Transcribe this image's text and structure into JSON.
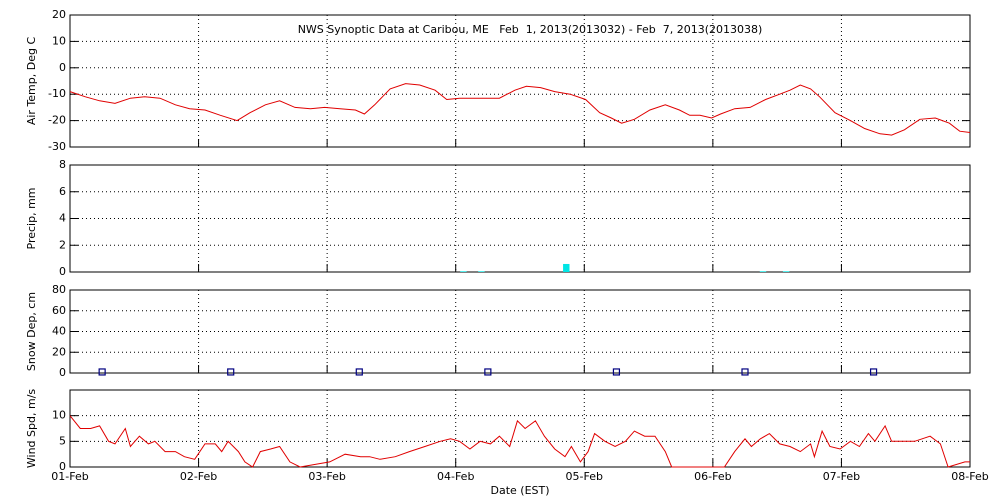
{
  "chart_data": [
    {
      "type": "line",
      "title": "NWS Synoptic Data at Caribou, ME   Feb  1, 2013(2013032) - Feb  7, 2013(2013038)",
      "ylabel": "Air Temp, Deg C",
      "color": "#e00000",
      "grid": true,
      "xlim": [
        0,
        7
      ],
      "xticks": [
        0,
        1,
        2,
        3,
        4,
        5,
        6,
        7
      ],
      "ylim": [
        -30,
        20
      ],
      "yticks": [
        -30,
        -20,
        -10,
        0,
        10,
        20
      ],
      "x": [
        0,
        0.12,
        0.23,
        0.35,
        0.47,
        0.58,
        0.7,
        0.82,
        0.93,
        1.05,
        1.17,
        1.3,
        1.4,
        1.52,
        1.63,
        1.75,
        1.87,
        1.98,
        2.1,
        2.22,
        2.29,
        2.37,
        2.49,
        2.61,
        2.72,
        2.84,
        2.93,
        3.03,
        3.15,
        3.34,
        3.46,
        3.55,
        3.66,
        3.77,
        3.89,
        4.01,
        4.12,
        4.21,
        4.29,
        4.39,
        4.51,
        4.63,
        4.74,
        4.82,
        4.9,
        4.99,
        5.06,
        5.17,
        5.29,
        5.41,
        5.52,
        5.6,
        5.68,
        5.76,
        5.83,
        5.95,
        6.07,
        6.18,
        6.3,
        6.39,
        6.49,
        6.61,
        6.73,
        6.84,
        6.92,
        7
      ],
      "values": [
        -9,
        -11,
        -12.5,
        -13.5,
        -11.5,
        -11,
        -11.5,
        -14,
        -15.5,
        -16,
        -18,
        -20,
        -17,
        -14,
        -12.5,
        -15,
        -15.5,
        -15,
        -15.5,
        -16,
        -17.5,
        -14,
        -8,
        -6,
        -6.5,
        -8.5,
        -12,
        -11.5,
        -11.5,
        -11.5,
        -8.5,
        -7,
        -7.5,
        -9,
        -10,
        -12,
        -17,
        -19,
        -21,
        -19.5,
        -16,
        -14,
        -16,
        -18,
        -18,
        -19,
        -17.5,
        -15.5,
        -15,
        -12,
        -10,
        -8.5,
        -6.5,
        -8,
        -11,
        -17,
        -20,
        -23,
        -25,
        -25.5,
        -23.5,
        -19.5,
        -19,
        -21,
        -24,
        -24.5
      ]
    },
    {
      "type": "bar",
      "ylabel": "Precip, mm",
      "color": "#00e5e5",
      "grid": true,
      "xlim": [
        0,
        7
      ],
      "xticks": [
        0,
        1,
        2,
        3,
        4,
        5,
        6,
        7
      ],
      "ylim": [
        0,
        8
      ],
      "yticks": [
        0,
        2,
        4,
        6,
        8
      ],
      "x": [
        3.06,
        3.2,
        3.86,
        5.39,
        5.57
      ],
      "values": [
        0.05,
        0.05,
        0.6,
        0.05,
        0.05
      ]
    },
    {
      "type": "scatter",
      "ylabel": "Snow Dep, cm",
      "color": "#000080",
      "grid": true,
      "xlim": [
        0,
        7
      ],
      "xticks": [
        0,
        1,
        2,
        3,
        4,
        5,
        6,
        7
      ],
      "ylim": [
        0,
        80
      ],
      "yticks": [
        0,
        20,
        40,
        60,
        80
      ],
      "x": [
        0.25,
        1.25,
        2.25,
        3.25,
        4.25,
        5.25,
        6.25
      ],
      "values": [
        1,
        1,
        1,
        1,
        1,
        1,
        1
      ]
    },
    {
      "type": "line",
      "ylabel": "Wind Spd, m/s",
      "xlabel": "Date (EST)",
      "color": "#e00000",
      "grid": true,
      "xlim": [
        0,
        7
      ],
      "xticks": [
        {
          "value": 0,
          "label": "01-Feb"
        },
        {
          "value": 1,
          "label": "02-Feb"
        },
        {
          "value": 2,
          "label": "03-Feb"
        },
        {
          "value": 3,
          "label": "04-Feb"
        },
        {
          "value": 4,
          "label": "05-Feb"
        },
        {
          "value": 5,
          "label": "06-Feb"
        },
        {
          "value": 6,
          "label": "07-Feb"
        },
        {
          "value": 7,
          "label": "08-Feb"
        }
      ],
      "ylim": [
        0,
        15
      ],
      "yticks": [
        0,
        5,
        10
      ],
      "x": [
        0,
        0.08,
        0.16,
        0.23,
        0.3,
        0.35,
        0.43,
        0.47,
        0.54,
        0.61,
        0.66,
        0.74,
        0.82,
        0.89,
        0.97,
        1.05,
        1.13,
        1.18,
        1.23,
        1.31,
        1.36,
        1.42,
        1.48,
        1.56,
        1.63,
        1.71,
        1.79,
        2.02,
        2.14,
        2.26,
        2.33,
        2.41,
        2.53,
        2.64,
        2.76,
        2.88,
        2.96,
        3.03,
        3.11,
        3.19,
        3.27,
        3.34,
        3.42,
        3.48,
        3.54,
        3.62,
        3.69,
        3.77,
        3.85,
        3.9,
        3.97,
        4.03,
        4.08,
        4.16,
        4.24,
        4.32,
        4.39,
        4.47,
        4.55,
        4.63,
        4.68,
        4.9,
        5.09,
        5.17,
        5.25,
        5.3,
        5.37,
        5.44,
        5.52,
        5.6,
        5.68,
        5.76,
        5.79,
        5.85,
        5.91,
        5.99,
        6.07,
        6.14,
        6.21,
        6.26,
        6.34,
        6.39,
        6.49,
        6.57,
        6.69,
        6.77,
        6.83,
        6.96,
        7
      ],
      "values": [
        10,
        7.5,
        7.5,
        8,
        5,
        4.5,
        7.5,
        4,
        6,
        4.5,
        5,
        3,
        3,
        2,
        1.5,
        4.5,
        4.5,
        3,
        5,
        3,
        1,
        0,
        3,
        3.5,
        4,
        1,
        0,
        1,
        2.5,
        2,
        2,
        1.5,
        2,
        3,
        4,
        5,
        5.5,
        5,
        3.5,
        5,
        4.5,
        6,
        4,
        9,
        7.5,
        9,
        6,
        3.5,
        2,
        4,
        1,
        3,
        6.5,
        5,
        4,
        5,
        7,
        6,
        6,
        3,
        0,
        0,
        0,
        3,
        5.5,
        4,
        5.5,
        6.5,
        4.5,
        4,
        3,
        4.5,
        2,
        7,
        4,
        3.5,
        5,
        4,
        6.5,
        5,
        8,
        5,
        5,
        5,
        6,
        4.5,
        0,
        1,
        1
      ]
    }
  ]
}
